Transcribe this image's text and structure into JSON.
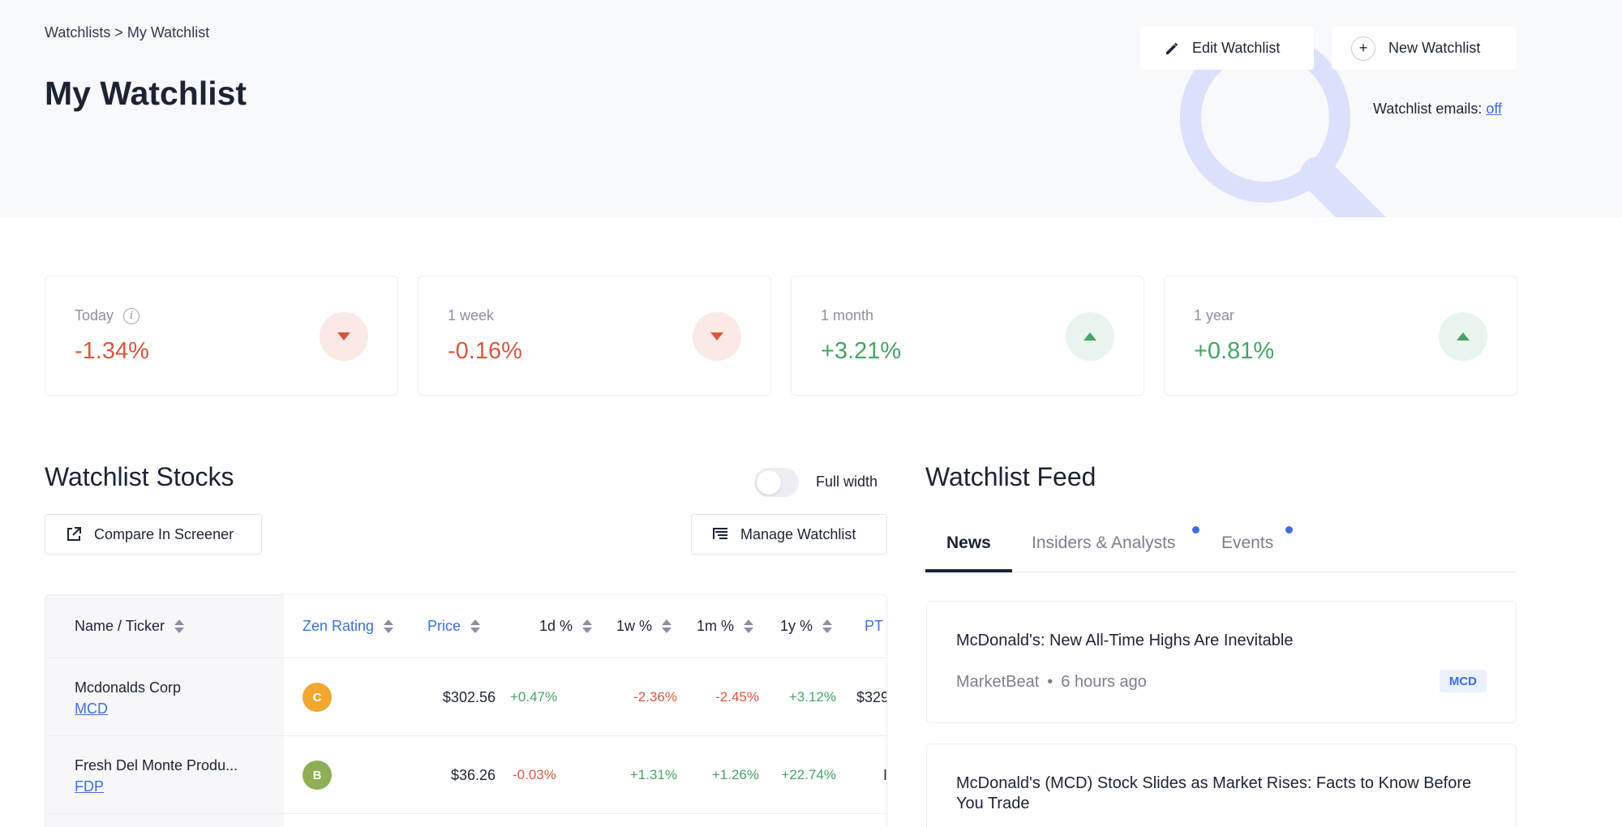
{
  "header": {
    "breadcrumb": "Watchlists > My Watchlist",
    "title": "My Watchlist",
    "edit_button": "Edit Watchlist",
    "new_button": "New Watchlist",
    "emails_label": "Watchlist emails: ",
    "emails_value": "off"
  },
  "stats": [
    {
      "label": "Today",
      "value": "-1.34%",
      "direction": "down"
    },
    {
      "label": "1 week",
      "value": "-0.16%",
      "direction": "down"
    },
    {
      "label": "1 month",
      "value": "+3.21%",
      "direction": "up"
    },
    {
      "label": "1 year",
      "value": "+0.81%",
      "direction": "up"
    }
  ],
  "stocks": {
    "title": "Watchlist Stocks",
    "full_width_label": "Full width",
    "compare_button": "Compare In Screener",
    "manage_button": "Manage Watchlist",
    "columns": [
      "Name / Ticker",
      "Zen Rating",
      "Price",
      "1d %",
      "1w %",
      "1m %",
      "1y %",
      "PT"
    ],
    "rows": [
      {
        "name": "Mcdonalds Corp",
        "ticker": "MCD",
        "rating": "C",
        "rating_color": "#f0a830",
        "price": "$302.56",
        "d1": "+0.47%",
        "w1": "-2.36%",
        "m1": "-2.45%",
        "y1": "+3.12%",
        "pt": "$329"
      },
      {
        "name": "Fresh Del Monte Produ...",
        "ticker": "FDP",
        "rating": "B",
        "rating_color": "#8fae55",
        "price": "$36.26",
        "d1": "-0.03%",
        "w1": "+1.31%",
        "m1": "+1.26%",
        "y1": "+22.74%",
        "pt": "I"
      }
    ]
  },
  "feed": {
    "title": "Watchlist Feed",
    "tabs": [
      "News",
      "Insiders & Analysts",
      "Events"
    ],
    "items": [
      {
        "title": "McDonald's: New All-Time Highs Are Inevitable",
        "source": "MarketBeat",
        "time": "6 hours ago",
        "tag": "MCD"
      },
      {
        "title": "McDonald's (MCD) Stock Slides as Market Rises: Facts to Know Before You Trade"
      }
    ]
  },
  "colors": {
    "accent": "#3c6fdb",
    "negative": "#d9573f",
    "positive": "#47a366"
  }
}
